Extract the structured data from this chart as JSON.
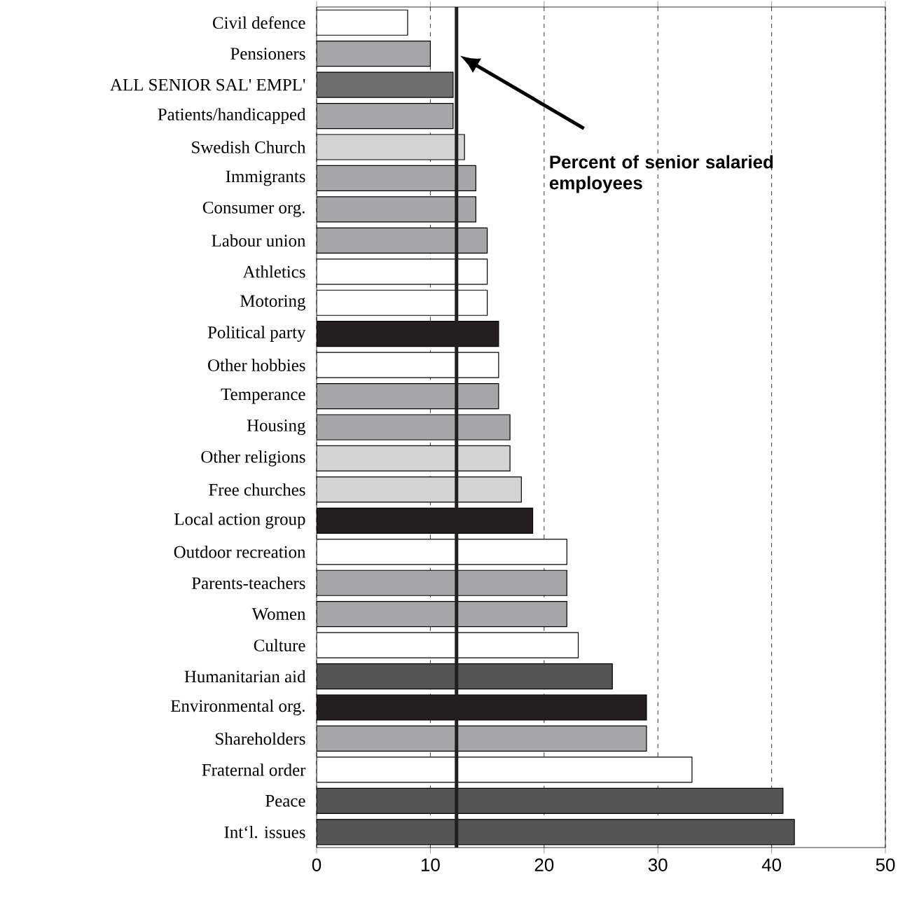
{
  "chart_data": {
    "type": "bar",
    "orientation": "horizontal",
    "categories": [
      "Civil defence",
      "Pensioners",
      "ALL SENIOR  SAL' EMPL'",
      "Patients/handicapped",
      "Swedish Church",
      "Immigrants",
      "Consumer org.",
      "Labour union",
      "Athletics",
      "Motoring",
      "Political party",
      "Other hobbies",
      "Temperance",
      "Housing",
      "Other religions",
      "Free churches",
      "Local action group",
      "Outdoor recreation",
      "Parents-teachers",
      "Women",
      "Culture",
      "Humanitarian aid",
      "Environmental org.",
      "Shareholders",
      "Fraternal order",
      "Peace",
      "Int‘l. issues"
    ],
    "values": [
      8,
      10,
      12,
      12,
      13,
      14,
      14,
      15,
      15,
      15,
      16,
      16,
      16,
      17,
      17,
      18,
      19,
      22,
      22,
      22,
      23,
      26,
      29,
      29,
      33,
      41,
      42
    ],
    "colors": [
      "#ffffff",
      "#a6a6a8",
      "#6e6e6e",
      "#a6a6a8",
      "#d4d4d4",
      "#a6a6a8",
      "#a6a6a8",
      "#a6a6a8",
      "#ffffff",
      "#ffffff",
      "#231f20",
      "#ffffff",
      "#a6a6a8",
      "#a6a6a8",
      "#d4d4d4",
      "#d4d4d4",
      "#231f20",
      "#ffffff",
      "#a6a6a8",
      "#a6a6a8",
      "#ffffff",
      "#555555",
      "#231f20",
      "#a6a6a8",
      "#ffffff",
      "#555555",
      "#555555"
    ],
    "xlim": [
      0,
      50
    ],
    "xticks": [
      0,
      10,
      20,
      30,
      40,
      50
    ],
    "grid": "x",
    "ref_lines": [
      {
        "axis": "x",
        "value": 12.3,
        "label": "Percent of senior salaried employees",
        "color": "#231f20"
      }
    ]
  }
}
